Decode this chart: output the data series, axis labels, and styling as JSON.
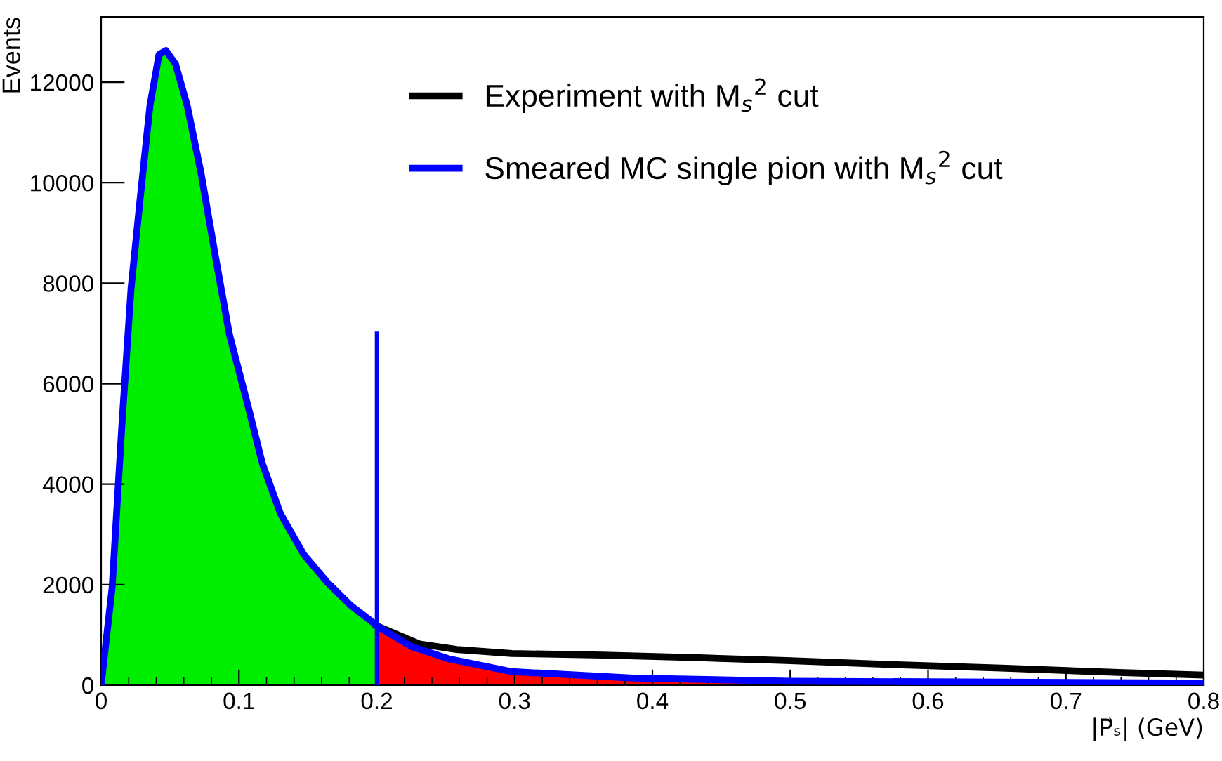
{
  "chart_data": {
    "type": "line",
    "ylabel": "Events",
    "xlabel": "|P⃗ₛ| (GeV)",
    "xlim": [
      0,
      0.8
    ],
    "ylim": [
      0,
      13300
    ],
    "xticks": [
      0,
      0.1,
      0.2,
      0.3,
      0.4,
      0.5,
      0.6,
      0.7,
      0.8
    ],
    "yticks": [
      0,
      2000,
      4000,
      6000,
      8000,
      10000,
      12000
    ],
    "grid": false,
    "legend": "top",
    "series": [
      {
        "type": "area",
        "color": "#00ee00",
        "x": [
          0,
          0.008,
          0.015,
          0.0217,
          0.0285,
          0.0354,
          0.042,
          0.047,
          0.054,
          0.0625,
          0.0727,
          0.083,
          0.093,
          0.107,
          0.117,
          0.13,
          0.147,
          0.164,
          0.181,
          0.198,
          0.2
        ],
        "values": [
          0,
          1950,
          5150,
          7890,
          9730,
          11530,
          12550,
          12630,
          12360,
          11530,
          10160,
          8520,
          6990,
          5510,
          4410,
          3420,
          2600,
          2050,
          1590,
          1230,
          1180
        ]
      },
      {
        "type": "area",
        "color": "#ff0000",
        "x": [
          0.2,
          0.225,
          0.253,
          0.298,
          0.386,
          0.5,
          0.8
        ],
        "values": [
          1180,
          770,
          520,
          270,
          140,
          80,
          40
        ]
      },
      {
        "name": "Experiment with M$_{s}$$^{2}$ cut",
        "color": "#000000",
        "x": [
          0.2,
          0.231,
          0.258,
          0.298,
          0.364,
          0.43,
          0.497,
          0.564,
          0.653,
          0.742,
          0.8
        ],
        "values": [
          1180,
          820,
          710,
          630,
          600,
          550,
          490,
          420,
          340,
          250,
          200
        ]
      },
      {
        "name": "Smeared MC single pion with M$_{s}$$^{2}$ cut",
        "color": "#0000ff",
        "x": [
          0,
          0.008,
          0.015,
          0.0217,
          0.0285,
          0.0354,
          0.042,
          0.047,
          0.054,
          0.0625,
          0.0727,
          0.083,
          0.093,
          0.107,
          0.117,
          0.13,
          0.147,
          0.164,
          0.181,
          0.198,
          0.2,
          0.225,
          0.253,
          0.298,
          0.386,
          0.5,
          0.8
        ],
        "values": [
          0,
          1950,
          5150,
          7890,
          9730,
          11530,
          12550,
          12630,
          12360,
          11530,
          10160,
          8520,
          6990,
          5510,
          4410,
          3420,
          2600,
          2050,
          1590,
          1230,
          1180,
          770,
          520,
          270,
          140,
          80,
          40
        ]
      },
      {
        "color": "#0000ff",
        "x": [
          0.2,
          0.2
        ],
        "values": [
          0,
          7000
        ]
      }
    ]
  }
}
